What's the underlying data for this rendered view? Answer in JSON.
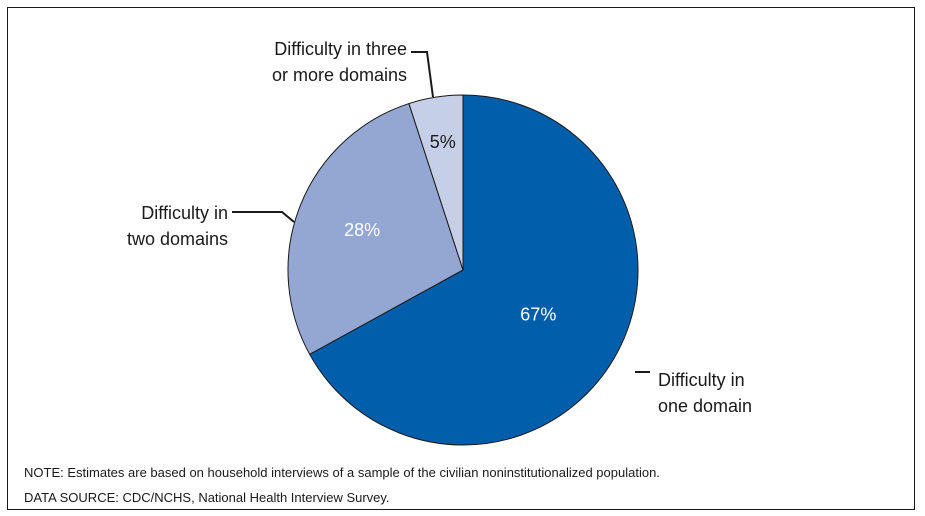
{
  "chart_data": {
    "type": "pie",
    "slices": [
      {
        "label": "Difficulty in one domain",
        "label_lines": [
          "Difficulty in",
          "one domain"
        ],
        "value": 67,
        "display": "67%",
        "color": "#005eaa",
        "label_color": "#ffffff"
      },
      {
        "label": "Difficulty in two domains",
        "label_lines": [
          "Difficulty in",
          "two domains"
        ],
        "value": 28,
        "display": "28%",
        "color": "#94a7d3",
        "label_color": "#ffffff"
      },
      {
        "label": "Difficulty in three or more domains",
        "label_lines": [
          "Difficulty in three",
          "or more domains"
        ],
        "value": 5,
        "display": "5%",
        "color": "#c6cfe8",
        "label_color": "#1a1a1a"
      }
    ],
    "start_angle": "12 o'clock",
    "direction": "clockwise"
  },
  "footnotes": {
    "note": "NOTE: Estimates are based on household interviews of a sample of the civilian noninstitutionalized population.",
    "source": "DATA SOURCE: CDC/NCHS, National Health Interview Survey."
  }
}
